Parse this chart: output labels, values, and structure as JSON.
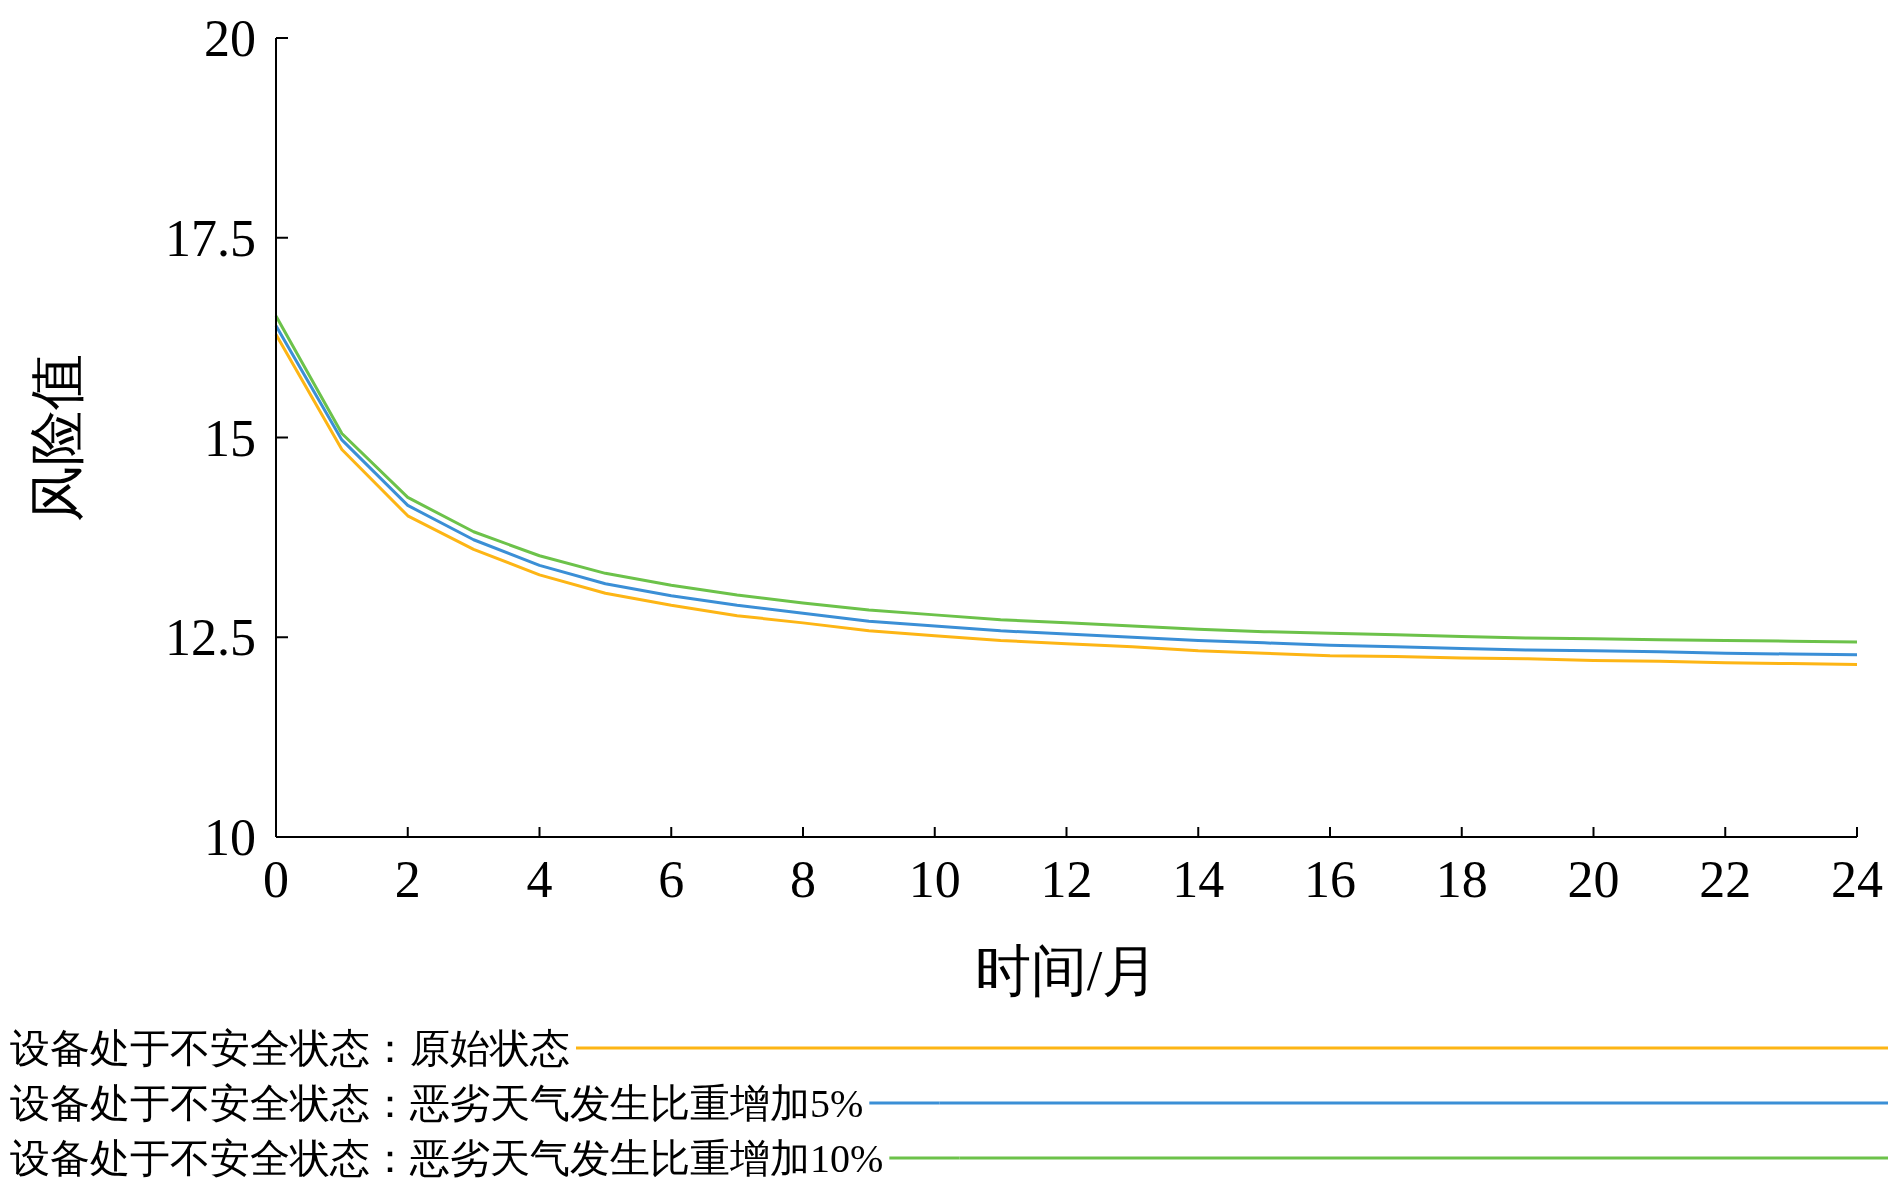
{
  "chart_data": {
    "type": "line",
    "xlabel": "时间/月",
    "ylabel": "风险值",
    "x": [
      0,
      1,
      2,
      3,
      4,
      5,
      6,
      7,
      8,
      9,
      10,
      11,
      12,
      13,
      14,
      15,
      16,
      17,
      18,
      19,
      20,
      21,
      22,
      23,
      24
    ],
    "xlim": [
      0,
      24
    ],
    "xticks": [
      0,
      2,
      4,
      6,
      8,
      10,
      12,
      14,
      16,
      18,
      20,
      22,
      24
    ],
    "ylim": [
      10,
      20
    ],
    "yticks": [
      10,
      12.5,
      15,
      17.5,
      20
    ],
    "grid": false,
    "legend": "bottom",
    "marker": "none",
    "line_style": "solid",
    "series": [
      {
        "name": "设备处于不安全状态：原始状态",
        "color": "#fdb515",
        "values": [
          16.29,
          14.85,
          14.02,
          13.6,
          13.28,
          13.05,
          12.9,
          12.77,
          12.68,
          12.58,
          12.52,
          12.46,
          12.42,
          12.38,
          12.33,
          12.3,
          12.27,
          12.26,
          12.24,
          12.23,
          12.21,
          12.2,
          12.18,
          12.17,
          12.16
        ]
      },
      {
        "name": "设备处于不安全状态：恶劣天气发生比重增加5%",
        "color": "#3b8fd6",
        "values": [
          16.4,
          14.97,
          14.15,
          13.72,
          13.4,
          13.17,
          13.02,
          12.9,
          12.8,
          12.7,
          12.64,
          12.58,
          12.54,
          12.5,
          12.46,
          12.43,
          12.4,
          12.38,
          12.36,
          12.34,
          12.33,
          12.32,
          12.3,
          12.29,
          12.28
        ]
      },
      {
        "name": "设备处于不安全状态：恶劣天气发生比重增加10%",
        "color": "#6cc24a",
        "values": [
          16.52,
          15.05,
          14.25,
          13.82,
          13.52,
          13.3,
          13.15,
          13.03,
          12.93,
          12.84,
          12.78,
          12.72,
          12.68,
          12.64,
          12.6,
          12.57,
          12.55,
          12.53,
          12.51,
          12.49,
          12.48,
          12.47,
          12.46,
          12.45,
          12.44
        ]
      }
    ]
  }
}
